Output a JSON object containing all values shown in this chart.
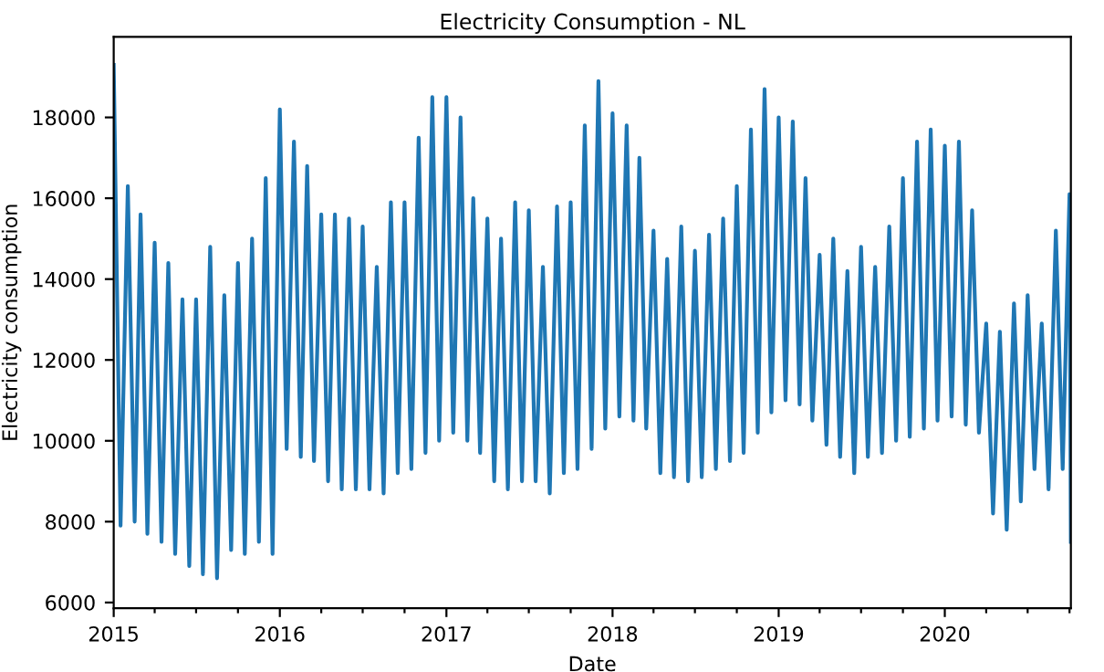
{
  "chart_data": {
    "type": "line",
    "title": "Electricity Consumption - NL",
    "xlabel": "Date",
    "ylabel": "Electricity consumption",
    "x": [
      "2015-01-01",
      "2015-01-16",
      "2015-02-01",
      "2015-02-16",
      "2015-03-01",
      "2015-03-16",
      "2015-04-01",
      "2015-04-16",
      "2015-05-01",
      "2015-05-16",
      "2015-06-01",
      "2015-06-16",
      "2015-07-01",
      "2015-07-16",
      "2015-08-01",
      "2015-08-16",
      "2015-09-01",
      "2015-09-16",
      "2015-10-01",
      "2015-10-16",
      "2015-11-01",
      "2015-11-16",
      "2015-12-01",
      "2015-12-16",
      "2016-01-01",
      "2016-01-16",
      "2016-02-01",
      "2016-02-16",
      "2016-03-01",
      "2016-03-16",
      "2016-04-01",
      "2016-04-16",
      "2016-05-01",
      "2016-05-16",
      "2016-06-01",
      "2016-06-16",
      "2016-07-01",
      "2016-07-16",
      "2016-08-01",
      "2016-08-16",
      "2016-09-01",
      "2016-09-16",
      "2016-10-01",
      "2016-10-16",
      "2016-11-01",
      "2016-11-16",
      "2016-12-01",
      "2016-12-16",
      "2017-01-01",
      "2017-01-16",
      "2017-02-01",
      "2017-02-16",
      "2017-03-01",
      "2017-03-16",
      "2017-04-01",
      "2017-04-16",
      "2017-05-01",
      "2017-05-16",
      "2017-06-01",
      "2017-06-16",
      "2017-07-01",
      "2017-07-16",
      "2017-08-01",
      "2017-08-16",
      "2017-09-01",
      "2017-09-16",
      "2017-10-01",
      "2017-10-16",
      "2017-11-01",
      "2017-11-16",
      "2017-12-01",
      "2017-12-16",
      "2018-01-01",
      "2018-01-16",
      "2018-02-01",
      "2018-02-16",
      "2018-03-01",
      "2018-03-16",
      "2018-04-01",
      "2018-04-16",
      "2018-05-01",
      "2018-05-16",
      "2018-06-01",
      "2018-06-16",
      "2018-07-01",
      "2018-07-16",
      "2018-08-01",
      "2018-08-16",
      "2018-09-01",
      "2018-09-16",
      "2018-10-01",
      "2018-10-16",
      "2018-11-01",
      "2018-11-16",
      "2018-12-01",
      "2018-12-16",
      "2019-01-01",
      "2019-01-16",
      "2019-02-01",
      "2019-02-16",
      "2019-03-01",
      "2019-03-16",
      "2019-04-01",
      "2019-04-16",
      "2019-05-01",
      "2019-05-16",
      "2019-06-01",
      "2019-06-16",
      "2019-07-01",
      "2019-07-16",
      "2019-08-01",
      "2019-08-16",
      "2019-09-01",
      "2019-09-16",
      "2019-10-01",
      "2019-10-16",
      "2019-11-01",
      "2019-11-16",
      "2019-12-01",
      "2019-12-16",
      "2020-01-01",
      "2020-01-16",
      "2020-02-01",
      "2020-02-16",
      "2020-03-01",
      "2020-03-16",
      "2020-04-01",
      "2020-04-16",
      "2020-05-01",
      "2020-05-16",
      "2020-06-01",
      "2020-06-16",
      "2020-07-01",
      "2020-07-16",
      "2020-08-01",
      "2020-08-16",
      "2020-09-01",
      "2020-09-16",
      "2020-10-01",
      "2020-10-04"
    ],
    "series": [
      {
        "color": "#1f77b4",
        "values": [
          19300,
          7900,
          16300,
          8000,
          15600,
          7700,
          14900,
          7500,
          14400,
          7200,
          13500,
          6900,
          13500,
          6700,
          14800,
          6600,
          13600,
          7300,
          14400,
          7200,
          15000,
          7500,
          16500,
          7200,
          18200,
          9800,
          17400,
          9600,
          16800,
          9500,
          15600,
          9000,
          15600,
          8800,
          15500,
          8800,
          15300,
          8800,
          14300,
          8700,
          15900,
          9200,
          15900,
          9300,
          17500,
          9700,
          18500,
          10000,
          18500,
          10200,
          18000,
          10000,
          16000,
          9700,
          15500,
          9000,
          15000,
          8800,
          15900,
          9000,
          15700,
          9000,
          14300,
          8700,
          15800,
          9200,
          15900,
          9300,
          17800,
          9800,
          18900,
          10300,
          18100,
          10600,
          17800,
          10500,
          17000,
          10300,
          15200,
          9200,
          14500,
          9100,
          15300,
          9000,
          14700,
          9100,
          15100,
          9300,
          15500,
          9500,
          16300,
          9700,
          17700,
          10200,
          18700,
          10700,
          18000,
          11000,
          17900,
          10900,
          16500,
          10500,
          14600,
          9900,
          15000,
          9600,
          14200,
          9200,
          14800,
          9600,
          14300,
          9700,
          15300,
          10000,
          16500,
          10100,
          17400,
          10300,
          17700,
          10500,
          17300,
          10600,
          17400,
          10400,
          15700,
          10200,
          12900,
          8200,
          12700,
          7800,
          13400,
          8500,
          13600,
          9300,
          12900,
          8800,
          15200,
          9300,
          16100,
          7500
        ]
      }
    ],
    "xlim": [
      "2015-01-01",
      "2020-10-04"
    ],
    "xticks": [
      {
        "value": "2015-01-01",
        "label": "2015"
      },
      {
        "value": "2015-04-01",
        "label": null
      },
      {
        "value": "2015-07-01",
        "label": null
      },
      {
        "value": "2015-10-01",
        "label": null
      },
      {
        "value": "2016-01-01",
        "label": "2016"
      },
      {
        "value": "2016-04-01",
        "label": null
      },
      {
        "value": "2016-07-01",
        "label": null
      },
      {
        "value": "2016-10-01",
        "label": null
      },
      {
        "value": "2017-01-01",
        "label": "2017"
      },
      {
        "value": "2017-04-01",
        "label": null
      },
      {
        "value": "2017-07-01",
        "label": null
      },
      {
        "value": "2017-10-01",
        "label": null
      },
      {
        "value": "2018-01-01",
        "label": "2018"
      },
      {
        "value": "2018-04-01",
        "label": null
      },
      {
        "value": "2018-07-01",
        "label": null
      },
      {
        "value": "2018-10-01",
        "label": null
      },
      {
        "value": "2019-01-01",
        "label": "2019"
      },
      {
        "value": "2019-04-01",
        "label": null
      },
      {
        "value": "2019-07-01",
        "label": null
      },
      {
        "value": "2019-10-01",
        "label": null
      },
      {
        "value": "2020-01-01",
        "label": "2020"
      },
      {
        "value": "2020-04-01",
        "label": null
      },
      {
        "value": "2020-07-01",
        "label": null
      },
      {
        "value": "2020-10-01",
        "label": null
      }
    ],
    "ylim": [
      5860,
      19990
    ],
    "yticks": [
      6000,
      8000,
      10000,
      12000,
      14000,
      16000,
      18000
    ],
    "grid": false,
    "legend": false
  }
}
